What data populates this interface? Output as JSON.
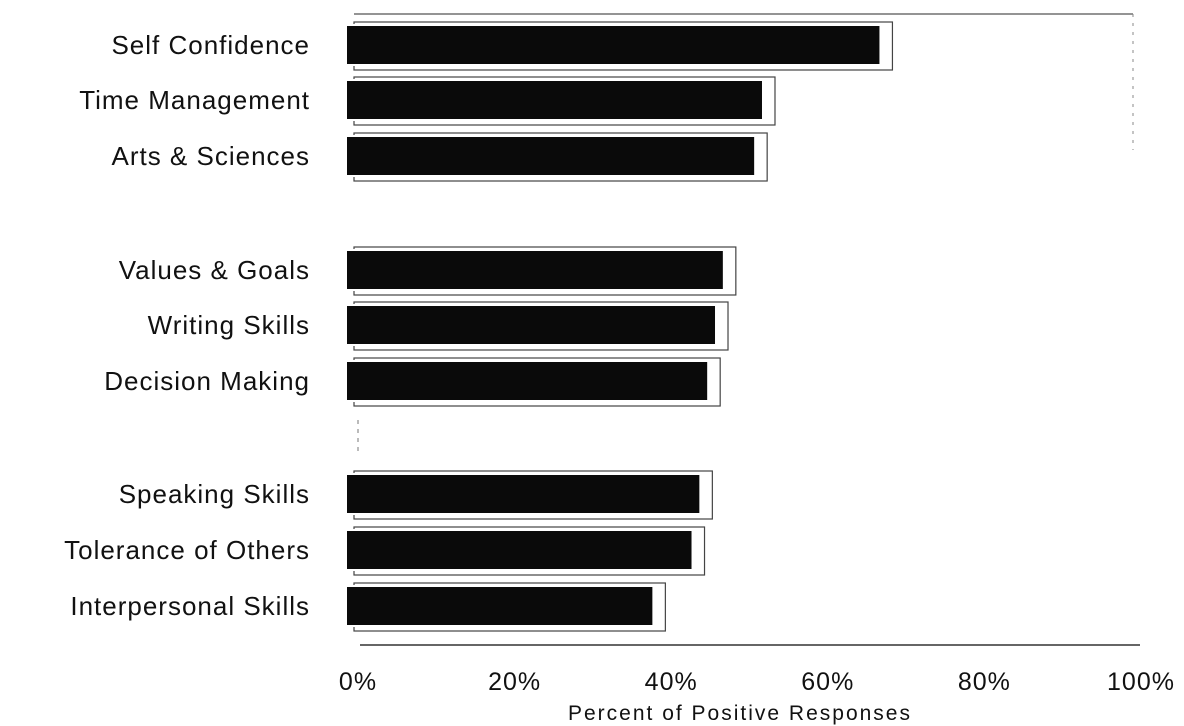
{
  "chart_data": {
    "type": "bar",
    "orientation": "horizontal",
    "categories": [
      "Self Confidence",
      "Time Management",
      "Arts & Sciences",
      "Values & Goals",
      "Writing Skills",
      "Decision Making",
      "Speaking Skills",
      "Tolerance of Others",
      "Interpersonal Skills"
    ],
    "groups": [
      3,
      3,
      3
    ],
    "values": [
      68,
      53,
      52,
      48,
      47,
      46,
      45,
      44,
      39
    ],
    "xlim": [
      0,
      100
    ],
    "xticks": [
      0,
      20,
      40,
      60,
      80,
      100
    ],
    "xtick_labels": [
      "0%",
      "20%",
      "40%",
      "60%",
      "80%",
      "100%"
    ],
    "xlabel": "Percent of Positive Responses",
    "title": "",
    "grid": false,
    "bar_color": "#0a0a0a"
  }
}
